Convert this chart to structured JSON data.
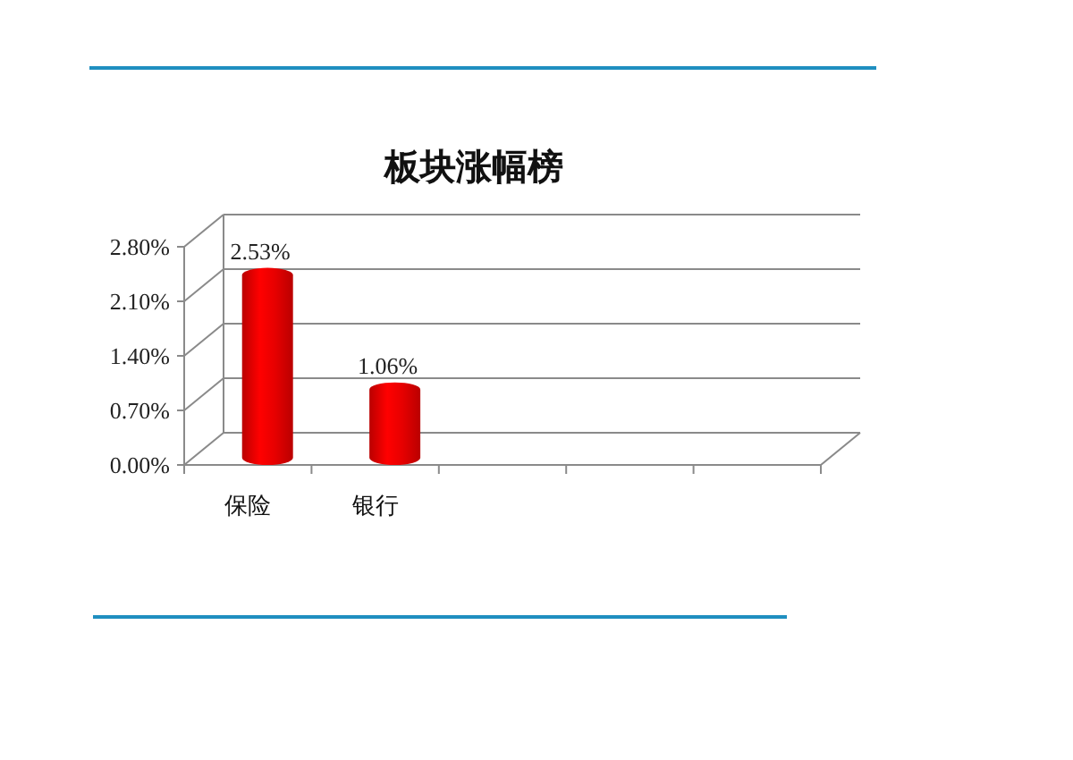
{
  "chart_data": {
    "type": "bar",
    "title": "板块涨幅榜",
    "categories": [
      "保险",
      "银行",
      null,
      null,
      null
    ],
    "values": [
      2.53,
      1.06,
      null,
      null,
      null
    ],
    "color": "#e60000",
    "value_labels": [
      "2.53%",
      "1.06%",
      null,
      null,
      null
    ],
    "ylim": [
      0,
      2.8
    ],
    "yticks": [
      {
        "value": 0,
        "label": "0.00%"
      },
      {
        "value": 0.7,
        "label": "0.70%"
      },
      {
        "value": 1.4,
        "label": "1.40%"
      },
      {
        "value": 2.1,
        "label": "2.10%"
      },
      {
        "value": 2.8,
        "label": "2.80%"
      }
    ],
    "grid": "y"
  }
}
